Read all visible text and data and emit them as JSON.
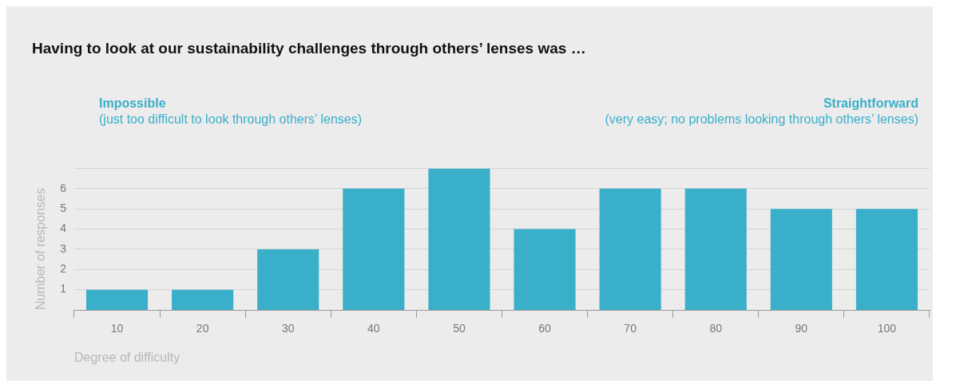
{
  "chart_data": {
    "type": "bar",
    "title": "Having to look at our sustainability challenges through others’ lenses was …",
    "annotations": [
      "Impossible",
      "Straightforward",
      "(just too difficult to look through others’ lenses)",
      "(very easy; no problems looking through others’ lenses)"
    ],
    "xlabel": "Degree of difficulty",
    "ylabel": "Number of responses",
    "categories": [
      "10",
      "20",
      "30",
      "40",
      "50",
      "60",
      "70",
      "80",
      "90",
      "100"
    ],
    "values": [
      1,
      1,
      3,
      6,
      7,
      4,
      6,
      6,
      5,
      5
    ],
    "color": "#3aafc9",
    "ylim": [
      0,
      7
    ],
    "yticks": [
      1,
      2,
      3,
      4,
      5,
      6,
      {
        "value": 7,
        "label": null
      }
    ],
    "grid": "y",
    "legend": false
  }
}
